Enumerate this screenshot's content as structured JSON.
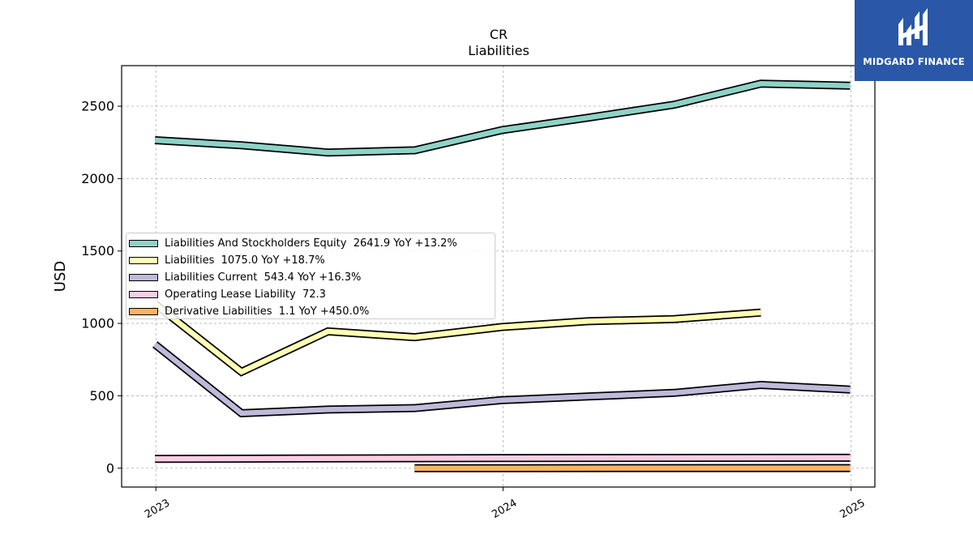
{
  "brand": {
    "name": "MIDGARD FINANCE",
    "logo_color": "#2a57a8"
  },
  "chart_data": {
    "type": "line",
    "title": "CR",
    "subtitle": "Liabilities",
    "ylabel": "USD",
    "xlabel": "",
    "x_ticks": [
      "2023",
      "2024",
      "2025"
    ],
    "x_tick_dates": [
      "2023-01-01",
      "2024-01-01",
      "2025-01-01"
    ],
    "xlim": [
      "2022-11-26",
      "2025-01-26"
    ],
    "ylim": [
      -130,
      2780
    ],
    "y_ticks": [
      0,
      500,
      1000,
      1500,
      2000,
      2500
    ],
    "grid": true,
    "legend_position": "center-left",
    "series": [
      {
        "name": "Liabilities And Stockholders Equity",
        "legend_label": "Liabilities And Stockholders Equity  2641.9 YoY +13.2%",
        "color": "#8dd3c7",
        "x": [
          "2022-12-31",
          "2023-04-01",
          "2023-07-01",
          "2023-09-30",
          "2023-12-31",
          "2024-03-30",
          "2024-06-29",
          "2024-09-28",
          "2024-12-31"
        ],
        "y": [
          2265,
          2230,
          2180,
          2195,
          2335,
          2420,
          2510,
          2655,
          2642
        ]
      },
      {
        "name": "Liabilities",
        "legend_label": "Liabilities  1075.0 YoY +18.7%",
        "color": "#ffffb3",
        "x": [
          "2022-12-31",
          "2023-04-01",
          "2023-07-01",
          "2023-09-30",
          "2023-12-31",
          "2024-03-30",
          "2024-06-29",
          "2024-09-28"
        ],
        "y": [
          1135,
          665,
          945,
          905,
          975,
          1015,
          1030,
          1075
        ]
      },
      {
        "name": "Liabilities Current",
        "legend_label": "Liabilities Current  543.4 YoY +16.3%",
        "color": "#bebada",
        "x": [
          "2022-12-31",
          "2023-04-01",
          "2023-07-01",
          "2023-09-30",
          "2023-12-31",
          "2024-03-30",
          "2024-06-29",
          "2024-09-28",
          "2024-12-31"
        ],
        "y": [
          855,
          380,
          405,
          415,
          470,
          495,
          520,
          575,
          543
        ]
      },
      {
        "name": "Operating Lease Liability",
        "legend_label": "Operating Lease Liability  72.3",
        "color": "#fccde5",
        "x": [
          "2022-12-31",
          "2023-12-31",
          "2024-12-31"
        ],
        "y": [
          65,
          70,
          72.3
        ]
      },
      {
        "name": "Derivative Liabilities",
        "legend_label": "Derivative Liabilities  1.1 YoY +450.0%",
        "color": "#fdb462",
        "x": [
          "2023-09-30",
          "2023-12-31",
          "2024-12-31"
        ],
        "y": [
          0.2,
          0.2,
          1.1
        ]
      }
    ]
  }
}
